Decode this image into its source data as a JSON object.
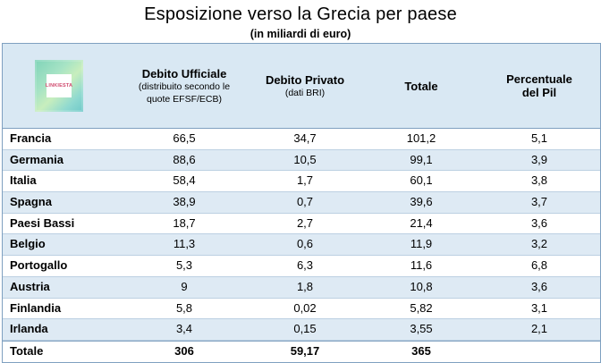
{
  "title": "Esposizione  verso la Grecia per paese",
  "subtitle": "(in miliardi di euro)",
  "logo_text": "LINKIESTA",
  "headers": {
    "col1_main": "Debito Ufficiale",
    "col1_sub1": "(distribuito secondo le",
    "col1_sub2": "quote EFSF/ECB)",
    "col2_main": "Debito Privato",
    "col2_sub": "(dati BRI)",
    "col3_main": "Totale",
    "col4_main1": "Percentuale",
    "col4_main2": "del Pil"
  },
  "rows": [
    {
      "country": "Francia",
      "official": "66,5",
      "private": "34,7",
      "total": "101,2",
      "pct": "5,1"
    },
    {
      "country": "Germania",
      "official": "88,6",
      "private": "10,5",
      "total": "99,1",
      "pct": "3,9"
    },
    {
      "country": "Italia",
      "official": "58,4",
      "private": "1,7",
      "total": "60,1",
      "pct": "3,8"
    },
    {
      "country": "Spagna",
      "official": "38,9",
      "private": "0,7",
      "total": "39,6",
      "pct": "3,7"
    },
    {
      "country": "Paesi Bassi",
      "official": "18,7",
      "private": "2,7",
      "total": "21,4",
      "pct": "3,6"
    },
    {
      "country": "Belgio",
      "official": "11,3",
      "private": "0,6",
      "total": "11,9",
      "pct": "3,2"
    },
    {
      "country": "Portogallo",
      "official": "5,3",
      "private": "6,3",
      "total": "11,6",
      "pct": "6,8"
    },
    {
      "country": "Austria",
      "official": "9",
      "private": "1,8",
      "total": "10,8",
      "pct": "3,6"
    },
    {
      "country": "Finlandia",
      "official": "5,8",
      "private": "0,02",
      "total": "5,82",
      "pct": "3,1"
    },
    {
      "country": "Irlanda",
      "official": "3,4",
      "private": "0,15",
      "total": "3,55",
      "pct": "2,1"
    }
  ],
  "totals": {
    "label": "Totale",
    "official": "306",
    "private": "59,17",
    "total": "365",
    "pct": ""
  },
  "colors": {
    "header_bg": "#d9e8f3",
    "stripe_bg": "#deeaf4",
    "border": "#7fa0c0"
  }
}
